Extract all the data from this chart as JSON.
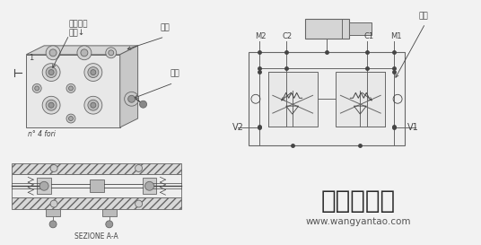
{
  "bg_color": "#f2f2f2",
  "line_color": "#666666",
  "dark_color": "#444444",
  "watermark_main": "大众机械网",
  "watermark_sub": "www.wangyantao.com",
  "label_guanlu": "管路连接",
  "label_youkou": "油口↓",
  "label_fati": "阀体",
  "label_faXin_left": "阀芯",
  "label_faXin_right": "阀芯",
  "label_M2": "M2",
  "label_C2": "C2",
  "label_C1": "C1",
  "label_M1": "M1",
  "label_V2": "V2",
  "label_V1": "V1",
  "label_sezione": "SEZIONE A-A",
  "label_n4fori": "n° 4 fori",
  "label_1": "1"
}
